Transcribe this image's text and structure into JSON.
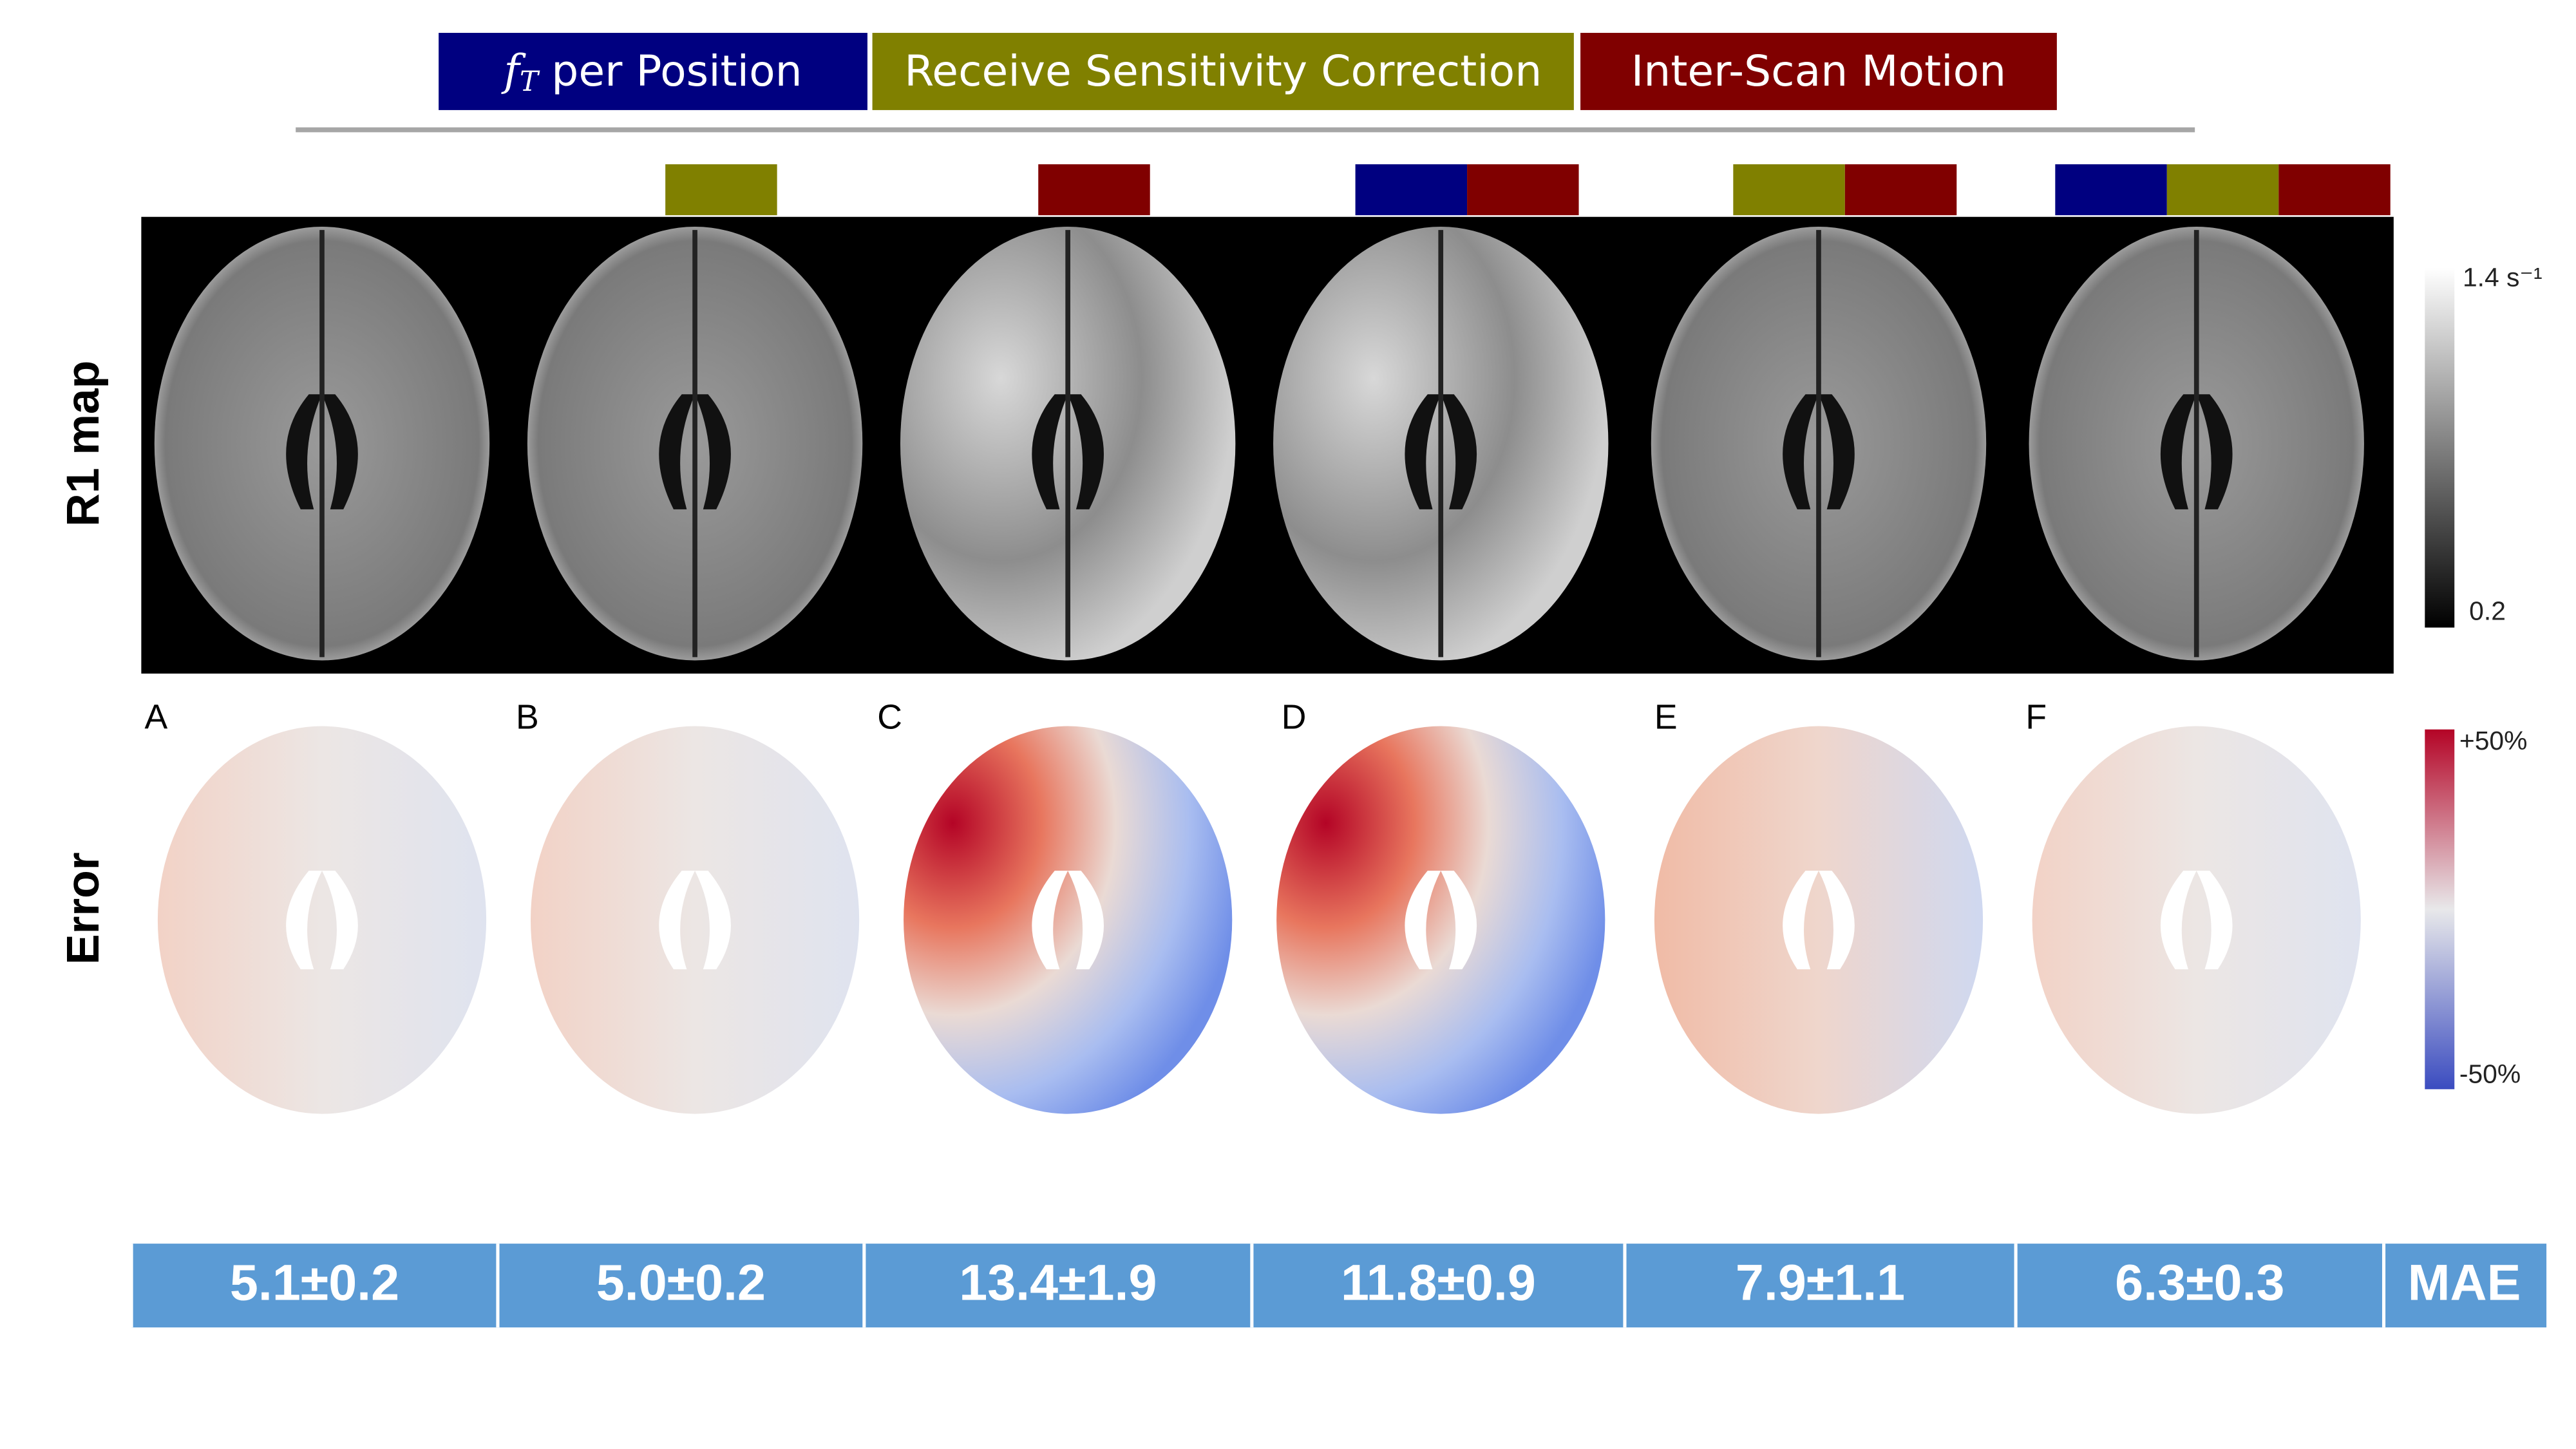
{
  "legend": [
    {
      "symbol": "f",
      "subscript": "T",
      "label": "per Position",
      "color": "#000080"
    },
    {
      "label": "Receive Sensitivity Correction",
      "color": "#808000"
    },
    {
      "label": "Inter-Scan Motion",
      "color": "#800000"
    }
  ],
  "row_labels": [
    "R1 map",
    "Error"
  ],
  "panels": [
    {
      "letter": "A",
      "mae": "5.1±0.2"
    },
    {
      "letter": "B",
      "mae": "5.0±0.2"
    },
    {
      "letter": "C",
      "mae": "13.4±1.9"
    },
    {
      "letter": "D",
      "mae": "11.8±0.9"
    },
    {
      "letter": "E",
      "mae": "7.9±1.1"
    },
    {
      "letter": "F",
      "mae": "6.3±0.3"
    }
  ],
  "mae_label": "MAE",
  "r1_colorbar": {
    "max_label": "1.4 s⁻¹",
    "min_label": "0.2"
  },
  "error_colorbar": {
    "max_label": "+50%",
    "min_label": "-50%"
  }
}
